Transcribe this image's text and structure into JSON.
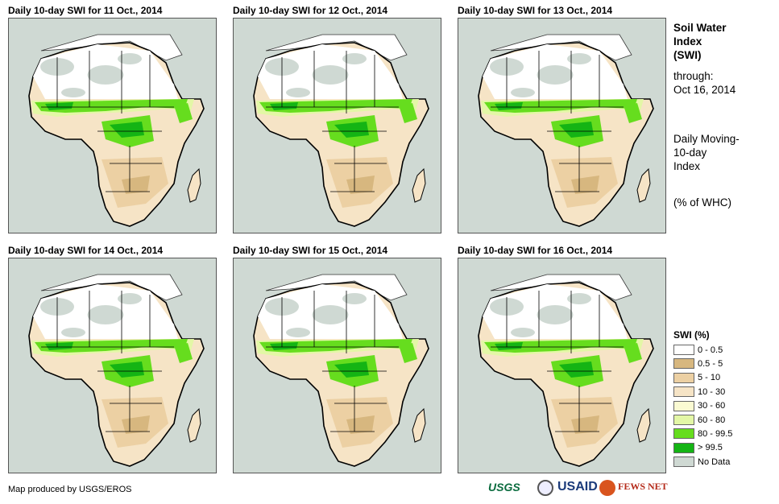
{
  "panels": [
    {
      "title": "Daily 10-day SWI for 11 Oct., 2014"
    },
    {
      "title": "Daily 10-day SWI for 12 Oct., 2014"
    },
    {
      "title": "Daily 10-day SWI for 13 Oct., 2014"
    },
    {
      "title": "Daily 10-day SWI for 14 Oct., 2014"
    },
    {
      "title": "Daily 10-day SWI for 15 Oct., 2014"
    },
    {
      "title": "Daily 10-day SWI for 16 Oct., 2014"
    }
  ],
  "side": {
    "title_lines": [
      "Soil Water",
      "Index",
      "(SWI)"
    ],
    "through_label": "through:",
    "through_date": "Oct 16, 2014",
    "desc_lines": [
      "Daily Moving-",
      "10-day",
      "Index"
    ],
    "units": "(% of WHC)"
  },
  "legend": {
    "title": "SWI (%)",
    "items": [
      {
        "label": "0 - 0.5",
        "color": "#ffffff"
      },
      {
        "label": "0.5 - 5",
        "color": "#d7b77f"
      },
      {
        "label": "5 - 10",
        "color": "#ecd0a3"
      },
      {
        "label": "10 - 30",
        "color": "#f6e4c6"
      },
      {
        "label": "30 - 60",
        "color": "#fafad2"
      },
      {
        "label": "60 - 80",
        "color": "#e3f7a6"
      },
      {
        "label": "80 - 99.5",
        "color": "#66dd1e"
      },
      {
        "label": "> 99.5",
        "color": "#14b414"
      },
      {
        "label": "No Data",
        "color": "#cfd9d3"
      }
    ]
  },
  "credit": "Map produced by USGS/EROS",
  "logos": {
    "usgs": "USGS",
    "usaid": "USAID",
    "fews": "FEWS NET"
  }
}
